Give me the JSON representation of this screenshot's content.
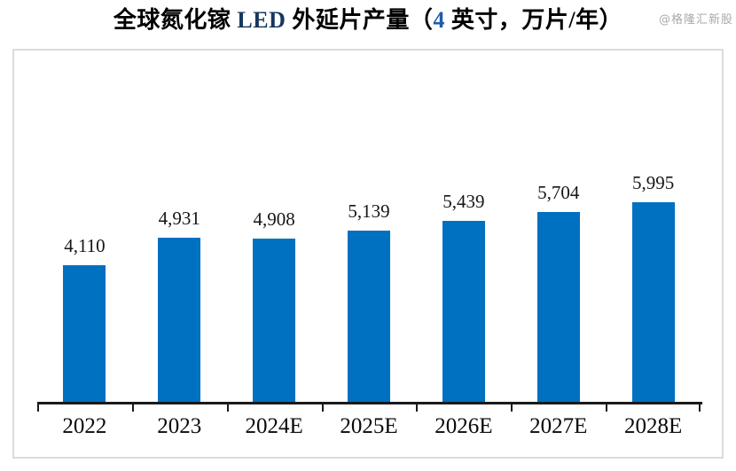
{
  "header": {
    "title_full": "全球氮化镓 LED 外延片产量（4 英寸，万片/年）",
    "title_parts": [
      {
        "text": "全球氮化镓 ",
        "color": "#000000"
      },
      {
        "text": "LED",
        "color": "#17375E"
      },
      {
        "text": " 外延片产量（",
        "color": "#000000"
      },
      {
        "text": "4",
        "color": "#1F5CA9"
      },
      {
        "text": " 英寸，万片/年）",
        "color": "#000000"
      }
    ],
    "watermark": "@格隆汇新股"
  },
  "chart_data": {
    "type": "bar",
    "title": "全球氮化镓 LED 外延片产量（4 英寸，万片/年）",
    "categories": [
      "2022",
      "2023",
      "2024E",
      "2025E",
      "2026E",
      "2027E",
      "2028E"
    ],
    "values": [
      4110,
      4931,
      4908,
      5139,
      5439,
      5704,
      5995
    ],
    "value_labels": [
      "4,110",
      "4,931",
      "4,908",
      "5,139",
      "5,439",
      "5,704",
      "5,995"
    ],
    "xlabel": "",
    "ylabel": "",
    "unit": "万片/年",
    "ylim": [
      0,
      10500
    ],
    "y_axis_visible": false,
    "grid": false,
    "legend": "none",
    "colors": {
      "bar": "#0070C0",
      "axis": "#1a1a1a",
      "frame_border": "#dcdcdc",
      "label_text": "#161616"
    }
  }
}
